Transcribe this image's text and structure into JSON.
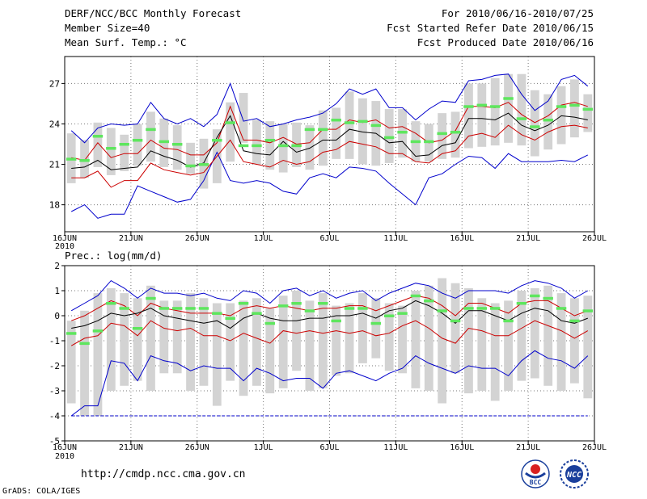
{
  "header": {
    "title": "DERF/NCC/BCC Monthly Forecast",
    "member_size": "Member Size=40",
    "variable1": "Mean Surf. Temp.: °C",
    "forecast_period": "For 2010/06/16-2010/07/25",
    "started_refer_date": "Fcst Started Refer Date 2010/06/15",
    "produced_date": "Fcst Produced Date 2010/06/16"
  },
  "footer": {
    "url": "http://cmdp.ncc.cma.gov.cn",
    "grads_credit": "GrADS: COLA/IGES"
  },
  "logos": {
    "left_text": "BCC",
    "right_text": "NCC"
  },
  "colors": {
    "box": "#d3d3d3",
    "mean": "#5ee65e",
    "median": "#000000",
    "quartile": "#cc0000",
    "extreme": "#0000cc",
    "grid": "#777777"
  },
  "chart_data": [
    {
      "id": "temperature",
      "type": "box-whisker",
      "title": "",
      "ylabel": "Mean Surf. Temp.: °C",
      "ylim": [
        16,
        29
      ],
      "yticks": [
        18,
        21,
        24,
        27
      ],
      "grid": true,
      "xtick_labels": [
        "16JUN",
        "21JUN",
        "26JUN",
        "1JUL",
        "6JUL",
        "11JUL",
        "16JUL",
        "21JUL",
        "26JUL"
      ],
      "xtick_days": [
        0,
        5,
        10,
        15,
        20,
        25,
        30,
        35,
        40
      ],
      "year_label": "2010",
      "n_days": 40,
      "box_low": [
        19.6,
        20.0,
        20.8,
        20.2,
        20.5,
        20.9,
        21.2,
        20.8,
        20.6,
        20.3,
        19.2,
        19.6,
        21.2,
        22.6,
        21.0,
        20.6,
        20.4,
        20.8,
        20.6,
        20.9,
        21.4,
        21.4,
        21.0,
        20.9,
        21.1,
        21.5,
        21.2,
        21.2,
        21.4,
        21.5,
        22.2,
        22.3,
        22.4,
        22.6,
        22.4,
        21.6,
        22.1,
        22.5,
        23.0,
        23.4
      ],
      "box_high": [
        23.3,
        22.8,
        24.1,
        23.7,
        23.2,
        24.0,
        24.9,
        24.4,
        23.9,
        22.6,
        22.9,
        23.6,
        25.6,
        26.3,
        24.3,
        24.2,
        24.0,
        24.1,
        23.9,
        25.0,
        25.2,
        26.4,
        25.9,
        25.7,
        25.1,
        25.1,
        24.2,
        24.0,
        24.8,
        24.9,
        27.0,
        27.0,
        27.4,
        27.7,
        27.7,
        26.5,
        26.2,
        26.8,
        27.3,
        26.2
      ],
      "mean": [
        21.4,
        21.3,
        23.1,
        22.2,
        22.5,
        22.8,
        23.6,
        22.7,
        22.5,
        20.9,
        21.0,
        22.8,
        24.1,
        22.4,
        22.4,
        22.8,
        22.4,
        22.4,
        23.6,
        23.6,
        24.3,
        24.1,
        24.2,
        23.9,
        23.0,
        23.4,
        22.7,
        22.7,
        23.3,
        23.4,
        25.3,
        25.4,
        25.3,
        25.9,
        24.4,
        23.8,
        24.3,
        25.3,
        25.4,
        25.1
      ],
      "median": [
        20.7,
        20.8,
        21.3,
        20.6,
        20.7,
        20.8,
        22.0,
        21.6,
        21.3,
        20.8,
        21.1,
        23.0,
        24.6,
        22.0,
        21.8,
        21.7,
        22.7,
        21.9,
        22.2,
        22.8,
        22.8,
        23.6,
        23.4,
        23.3,
        22.6,
        22.7,
        21.6,
        21.7,
        22.4,
        22.6,
        24.4,
        24.4,
        24.3,
        24.8,
        23.9,
        23.5,
        23.9,
        24.6,
        24.5,
        24.3
      ],
      "q_low": [
        20.0,
        20.0,
        20.5,
        19.3,
        19.8,
        19.8,
        21.1,
        20.6,
        20.4,
        20.2,
        20.4,
        21.6,
        22.8,
        21.2,
        21.0,
        20.8,
        21.3,
        21.0,
        21.2,
        21.9,
        22.1,
        22.7,
        22.5,
        22.3,
        21.8,
        21.8,
        21.2,
        21.1,
        21.8,
        22.0,
        23.1,
        23.3,
        23.0,
        23.9,
        23.2,
        22.8,
        23.4,
        23.8,
        23.9,
        23.7
      ],
      "q_high": [
        21.5,
        21.3,
        22.6,
        21.5,
        21.8,
        21.8,
        22.8,
        22.2,
        22.1,
        21.7,
        21.7,
        22.6,
        25.3,
        22.8,
        22.8,
        22.6,
        23.0,
        22.5,
        22.6,
        23.6,
        23.6,
        24.3,
        24.1,
        24.3,
        23.7,
        23.8,
        23.3,
        22.6,
        22.8,
        23.5,
        25.3,
        25.3,
        25.2,
        25.6,
        24.7,
        24.1,
        24.6,
        25.4,
        25.6,
        25.3
      ],
      "ext_low": [
        17.5,
        18.0,
        17.0,
        17.3,
        17.3,
        19.4,
        19.0,
        18.6,
        18.2,
        18.4,
        19.8,
        21.9,
        19.8,
        19.6,
        19.8,
        19.6,
        19.0,
        18.8,
        20.0,
        20.3,
        20.0,
        20.8,
        20.7,
        20.5,
        19.6,
        18.8,
        18.0,
        20.0,
        20.3,
        21.0,
        21.6,
        21.5,
        20.7,
        21.8,
        21.2,
        21.2,
        21.2,
        21.3,
        21.2,
        21.7
      ],
      "ext_high": [
        23.5,
        22.6,
        23.7,
        24.0,
        23.9,
        24.0,
        25.6,
        24.4,
        24.0,
        24.4,
        23.8,
        24.7,
        27.0,
        24.2,
        24.4,
        23.8,
        24.0,
        24.3,
        24.5,
        24.8,
        25.5,
        26.6,
        26.2,
        26.6,
        25.2,
        25.2,
        24.3,
        25.1,
        25.7,
        25.6,
        27.2,
        27.3,
        27.6,
        27.7,
        26.2,
        25.0,
        25.7,
        27.3,
        27.6,
        26.8
      ]
    },
    {
      "id": "precipitation",
      "type": "box-whisker",
      "title": "",
      "ylabel": "Prec.: log(mm/d)",
      "ylim": [
        -5,
        2
      ],
      "yticks": [
        -5,
        -4,
        -3,
        -2,
        -1,
        0,
        1,
        2
      ],
      "grid": true,
      "xtick_labels": [
        "16JUN",
        "21JUN",
        "26JUN",
        "1JUL",
        "6JUL",
        "11JUL",
        "16JUL",
        "21JUL",
        "26JUL"
      ],
      "xtick_days": [
        0,
        5,
        10,
        15,
        20,
        25,
        30,
        35,
        40
      ],
      "year_label": "2010",
      "n_days": 40,
      "box_low": [
        -3.5,
        -4.0,
        -4.0,
        -3.0,
        -2.8,
        -2.6,
        -3.0,
        -2.3,
        -2.3,
        -3.0,
        -2.8,
        -3.6,
        -2.6,
        -3.2,
        -2.8,
        -3.1,
        -2.9,
        -2.2,
        -3.0,
        -2.9,
        -2.4,
        -2.3,
        -1.9,
        -1.7,
        -2.2,
        -2.3,
        -2.9,
        -3.0,
        -3.5,
        -2.3,
        -3.1,
        -3.0,
        -3.4,
        -3.0,
        -2.6,
        -2.5,
        -2.8,
        -3.0,
        -2.7,
        -3.3
      ],
      "box_high": [
        -0.2,
        0.2,
        0.9,
        1.1,
        0.9,
        0.7,
        1.2,
        0.6,
        0.6,
        0.9,
        0.7,
        0.5,
        0.5,
        0.6,
        0.7,
        0.3,
        0.8,
        1.0,
        0.6,
        0.9,
        0.4,
        0.5,
        0.9,
        0.7,
        0.5,
        0.4,
        1.0,
        1.2,
        1.5,
        1.3,
        1.1,
        0.7,
        0.5,
        0.6,
        1.0,
        1.1,
        1.2,
        0.9,
        0.7,
        0.8
      ],
      "mean": [
        -0.7,
        -1.1,
        -0.6,
        0.5,
        0.3,
        -0.5,
        0.7,
        0.3,
        0.3,
        0.3,
        0.3,
        0.1,
        -0.1,
        0.5,
        0.1,
        -0.3,
        0.4,
        0.5,
        0.2,
        0.5,
        -0.2,
        0.3,
        0.3,
        -0.3,
        0.0,
        0.1,
        0.8,
        0.6,
        0.2,
        -0.2,
        0.3,
        0.3,
        0.3,
        -0.2,
        0.5,
        0.8,
        0.7,
        0.3,
        -0.2,
        0.2
      ],
      "median": [
        -0.5,
        -0.4,
        -0.2,
        0.1,
        0.0,
        0.1,
        0.3,
        0.0,
        -0.1,
        -0.2,
        -0.3,
        -0.2,
        -0.5,
        -0.1,
        0.1,
        -0.1,
        -0.2,
        -0.2,
        -0.1,
        -0.1,
        0.0,
        0.0,
        0.1,
        -0.1,
        0.2,
        0.3,
        0.6,
        0.4,
        0.1,
        -0.3,
        0.2,
        0.2,
        0.0,
        -0.2,
        0.1,
        0.3,
        0.2,
        -0.2,
        -0.3,
        -0.1
      ],
      "q_low": [
        -1.2,
        -0.9,
        -0.8,
        -0.3,
        -0.4,
        -0.8,
        -0.2,
        -0.5,
        -0.6,
        -0.5,
        -0.8,
        -0.8,
        -1.0,
        -0.7,
        -0.9,
        -1.1,
        -0.6,
        -0.7,
        -0.6,
        -0.7,
        -0.6,
        -0.7,
        -0.6,
        -0.8,
        -0.7,
        -0.4,
        -0.2,
        -0.5,
        -0.9,
        -1.1,
        -0.5,
        -0.6,
        -0.8,
        -0.8,
        -0.5,
        -0.2,
        -0.4,
        -0.6,
        -0.9,
        -0.6
      ],
      "q_high": [
        -0.2,
        0.0,
        0.3,
        0.6,
        0.4,
        0.0,
        0.5,
        0.3,
        0.2,
        0.1,
        0.1,
        0.1,
        0.0,
        0.3,
        0.4,
        0.3,
        0.4,
        0.3,
        0.2,
        0.3,
        0.3,
        0.4,
        0.4,
        0.2,
        0.4,
        0.6,
        0.8,
        0.7,
        0.4,
        0.0,
        0.5,
        0.5,
        0.3,
        0.1,
        0.5,
        0.6,
        0.6,
        0.3,
        0.0,
        0.2
      ],
      "ext_low": [
        -4.0,
        -3.6,
        -3.6,
        -1.8,
        -1.9,
        -2.6,
        -1.6,
        -1.8,
        -1.9,
        -2.2,
        -2.0,
        -2.1,
        -2.1,
        -2.6,
        -2.1,
        -2.3,
        -2.6,
        -2.5,
        -2.5,
        -2.9,
        -2.3,
        -2.2,
        -2.4,
        -2.6,
        -2.3,
        -2.1,
        -1.6,
        -1.9,
        -2.1,
        -2.3,
        -2.0,
        -2.1,
        -2.1,
        -2.4,
        -1.8,
        -1.4,
        -1.7,
        -1.8,
        -2.1,
        -1.6
      ],
      "ext_high": [
        0.2,
        0.5,
        0.8,
        1.4,
        1.1,
        0.7,
        1.1,
        0.9,
        0.9,
        0.8,
        0.9,
        0.7,
        0.6,
        1.0,
        0.9,
        0.5,
        1.0,
        1.1,
        0.8,
        1.0,
        0.7,
        0.9,
        1.0,
        0.6,
        0.9,
        1.1,
        1.3,
        1.2,
        0.9,
        0.7,
        1.0,
        1.0,
        1.0,
        0.9,
        1.2,
        1.4,
        1.3,
        1.1,
        0.7,
        1.0
      ],
      "floor": -4
    }
  ]
}
